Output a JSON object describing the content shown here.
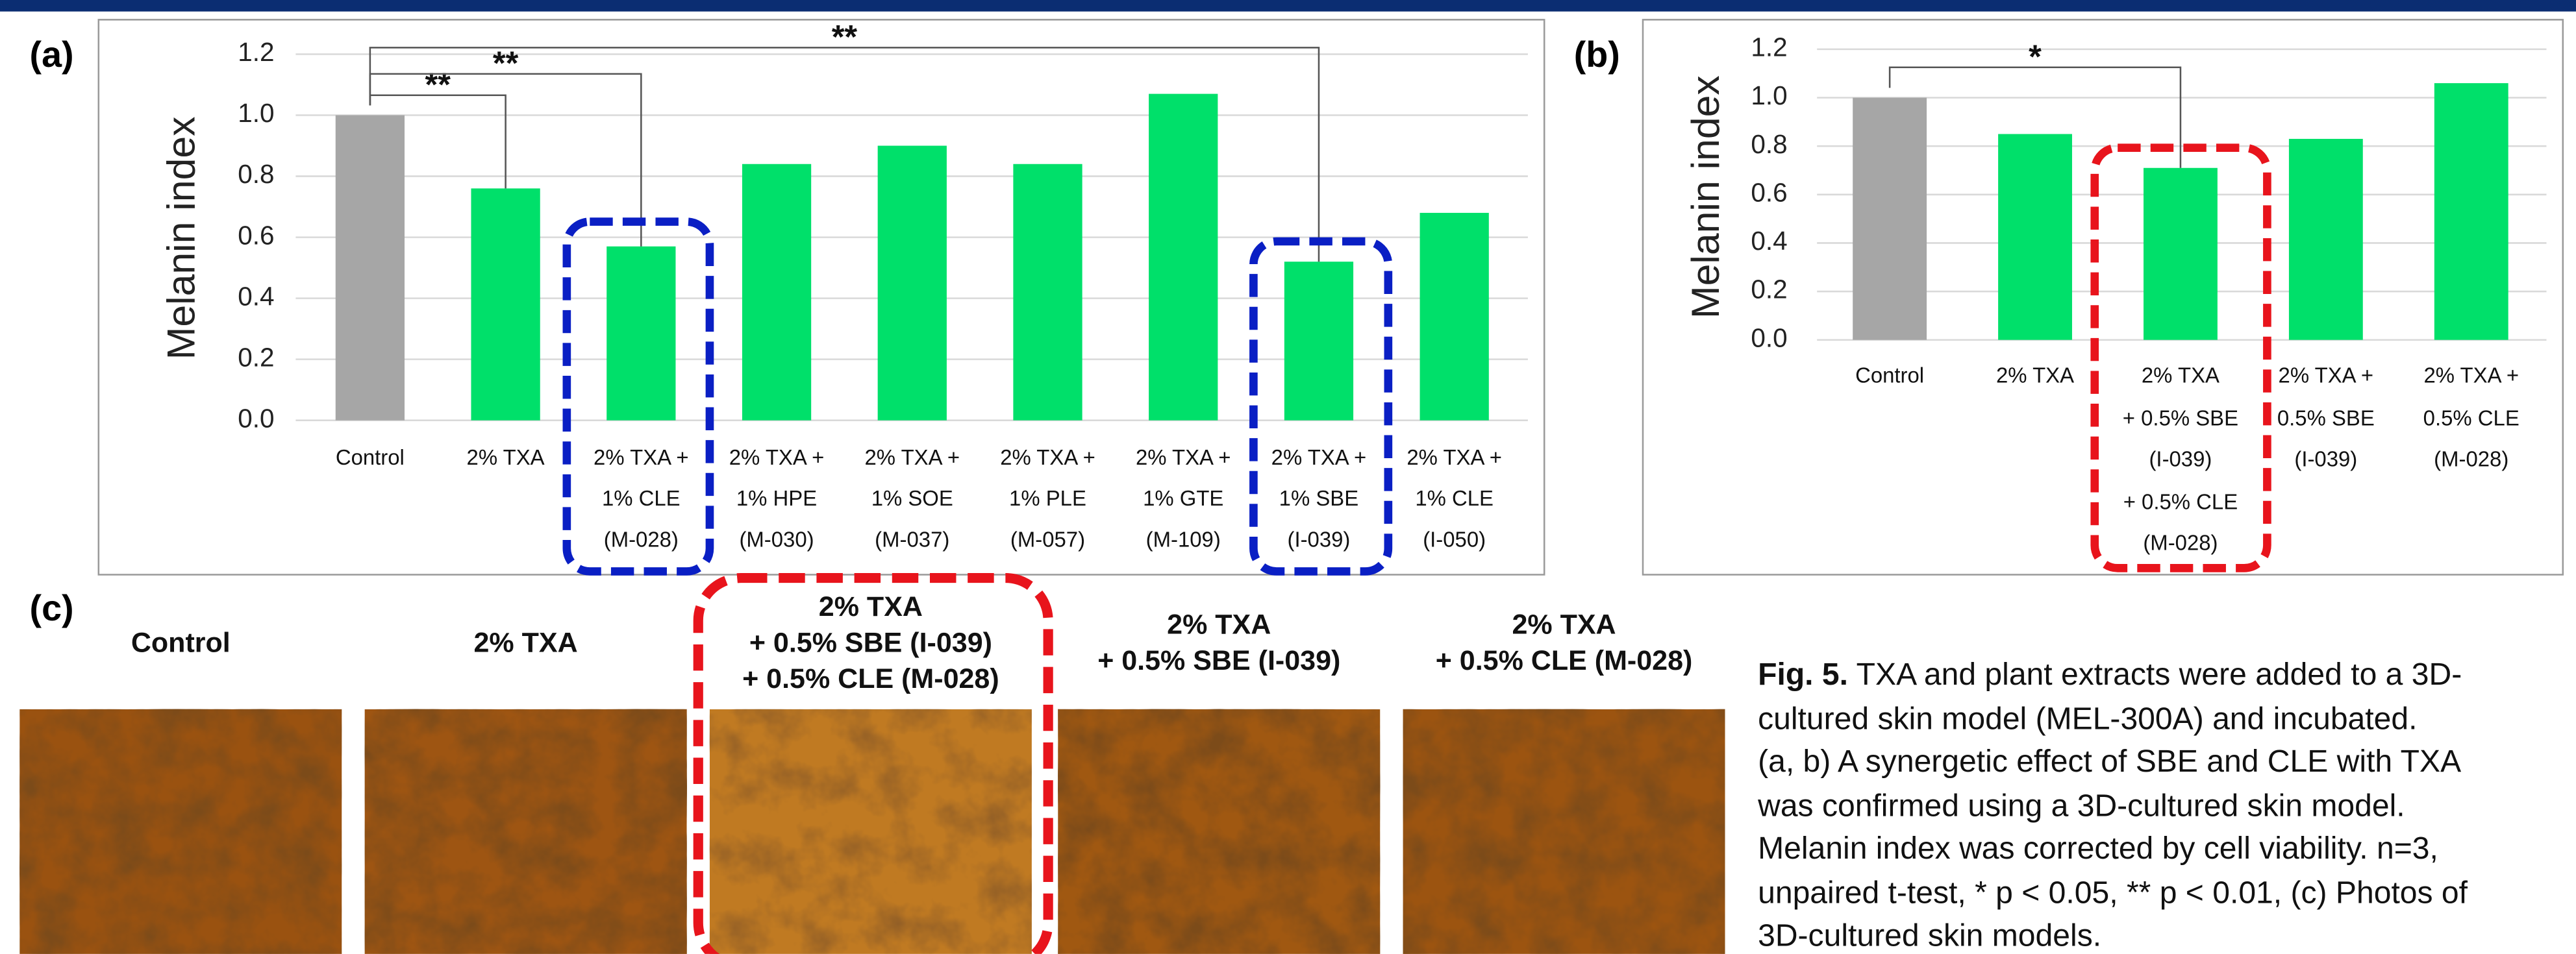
{
  "chart_data": [
    {
      "type": "bar",
      "label": "(a)",
      "y_label": "Melanin index",
      "categories": [
        "Control",
        "2% TXA",
        "2% TXA +\n1% CLE\n(M-028)",
        "2% TXA +\n1% HPE\n(M-030)",
        "2% TXA +\n1% SOE\n(M-037)",
        "2% TXA +\n1% PLE\n(M-057)",
        "2% TXA +\n1% GTE\n(M-109)",
        "2% TXA +\n1% SBE\n(I-039)",
        "2% TXA +\n1% CLE\n(I-050)"
      ],
      "values": [
        1.0,
        0.76,
        0.57,
        0.84,
        0.9,
        0.84,
        1.07,
        0.52,
        0.68
      ],
      "colors": [
        "#a6a6a6",
        "#00e06a",
        "#00e06a",
        "#00e06a",
        "#00e06a",
        "#00e06a",
        "#00e06a",
        "#00e06a",
        "#00e06a"
      ],
      "ylim": [
        0,
        1.2
      ],
      "yticks": [
        {
          "value": 0,
          "label": "0.0"
        },
        0.2,
        0.4,
        0.6,
        0.8,
        {
          "value": 1,
          "label": "1.0"
        },
        1.2
      ],
      "grid": true,
      "annotations": [
        {
          "label": "**"
        },
        {
          "label": "**"
        },
        {
          "label": "**"
        }
      ]
    },
    {
      "type": "bar",
      "label": "(b)",
      "y_label": "Melanin index",
      "categories": [
        "Control",
        "2% TXA",
        "2% TXA\n+ 0.5% SBE\n(I-039)\n+ 0.5% CLE\n(M-028)",
        "2% TXA +\n0.5% SBE\n(I-039)",
        "2% TXA +\n0.5% CLE\n(M-028)"
      ],
      "values": [
        1.0,
        0.85,
        0.71,
        0.83,
        1.06
      ],
      "colors": [
        "#a6a6a6",
        "#00e06a",
        "#00e06a",
        "#00e06a",
        "#00e06a"
      ],
      "ylim": [
        0,
        1.2
      ],
      "yticks": [
        {
          "value": 0,
          "label": "0.0"
        },
        0.2,
        0.4,
        0.6,
        0.8,
        {
          "value": 1,
          "label": "1.0"
        },
        1.2
      ],
      "grid": true,
      "annotations": [
        {
          "label": "*"
        }
      ]
    }
  ],
  "panel_c": {
    "label": "(c)",
    "photos": [
      "Control",
      "2% TXA",
      "2% TXA\n+ 0.5% SBE (I-039)\n+ 0.5% CLE (M-028)",
      "2% TXA\n+ 0.5% SBE (I-039)",
      "2% TXA\n+ 0.5% CLE (M-028)"
    ]
  },
  "caption": {
    "label": "Fig. 5.",
    "text": "TXA and plant extracts were added to a 3D-\ncultured skin model (MEL-300A) and incubated.\n(a, b) A synergetic effect of SBE and CLE with TXA\nwas confirmed using a 3D-cultured skin model.\nMelanin index was corrected by cell viability. n=3,\nunpaired t-test, * p < 0.05, ** p < 0.01, (c) Photos of\n3D-cultured skin models."
  }
}
